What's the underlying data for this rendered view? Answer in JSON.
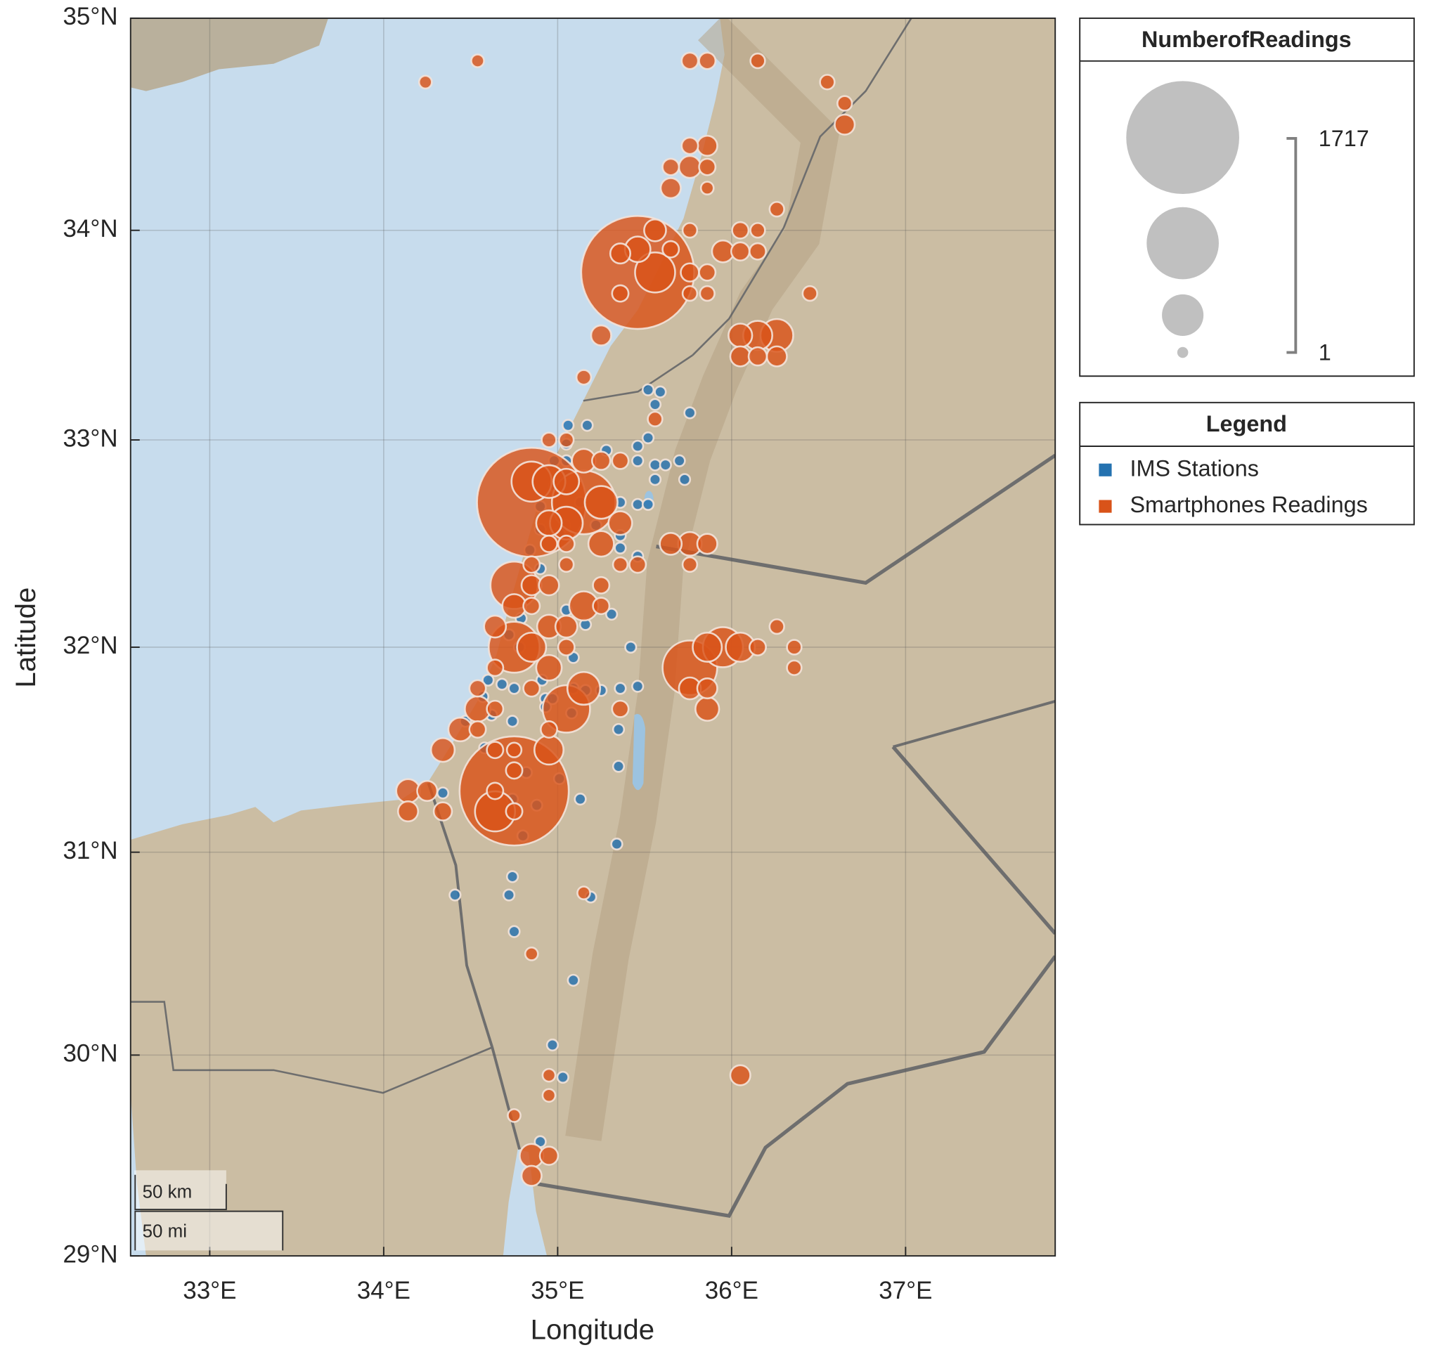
{
  "chart_data": {
    "type": "bubble",
    "xlabel": "Longitude",
    "ylabel": "Latitude",
    "xlim": [
      32.545,
      37.86
    ],
    "ylim": [
      29,
      35
    ],
    "xticks": [
      {
        "value": 33,
        "label": "33°E"
      },
      {
        "value": 34,
        "label": "34°E"
      },
      {
        "value": 35,
        "label": "35°E"
      },
      {
        "value": 36,
        "label": "36°E"
      },
      {
        "value": 37,
        "label": "37°E"
      }
    ],
    "yticks": [
      {
        "value": 29,
        "label": "29°N"
      },
      {
        "value": 30,
        "label": "30°N"
      },
      {
        "value": 31,
        "label": "31°N"
      },
      {
        "value": 32,
        "label": "32°N"
      },
      {
        "value": 33,
        "label": "33°N"
      },
      {
        "value": 34,
        "label": "34°N"
      },
      {
        "value": 35,
        "label": "35°N"
      }
    ],
    "grid": true,
    "size_legend_title": "NumberofReadings",
    "sizelim": [
      1,
      1717
    ],
    "legend_title": "Legend",
    "scale_bar": [
      "50 km",
      "50 mi"
    ],
    "series": [
      {
        "name": "IMS Stations",
        "color": "#2472b0",
        "x": [
          35.52,
          35.59,
          35.76,
          35.06,
          35.17,
          35.56,
          35.05,
          35.28,
          35.46,
          35.52,
          34.98,
          35.05,
          35.46,
          35.56,
          35.62,
          35.7,
          35.73,
          35.56,
          34.98,
          35.05,
          35.13,
          35.36,
          35.46,
          35.52,
          34.9,
          35.04,
          35.22,
          34.9,
          35.01,
          35.36,
          35.36,
          35.46,
          34.84,
          34.9,
          35.31,
          35.05,
          35.16,
          34.79,
          34.72,
          34.78,
          35.42,
          34.91,
          35.09,
          34.6,
          34.68,
          34.75,
          34.93,
          34.97,
          35.09,
          35.16,
          35.25,
          35.36,
          35.46,
          34.57,
          34.62,
          34.93,
          35.08,
          34.47,
          34.74,
          35.35,
          34.58,
          35.35,
          34.82,
          35.01,
          35.13,
          34.74,
          34.88,
          34.34,
          34.8,
          35.34,
          34.74,
          34.72,
          34.41,
          35.19,
          34.75,
          35.09,
          34.97,
          35.03,
          34.9
        ],
        "y": [
          33.24,
          33.23,
          33.13,
          33.07,
          33.07,
          33.17,
          32.98,
          32.95,
          32.97,
          33.01,
          32.9,
          32.9,
          32.9,
          32.88,
          32.88,
          32.9,
          32.81,
          32.81,
          32.78,
          32.84,
          32.7,
          32.7,
          32.69,
          32.69,
          32.68,
          32.59,
          32.59,
          32.57,
          32.55,
          32.54,
          32.48,
          32.44,
          32.47,
          32.38,
          32.16,
          32.18,
          32.11,
          32.14,
          32.06,
          32.0,
          32.0,
          31.84,
          31.95,
          31.84,
          31.82,
          31.8,
          31.75,
          31.75,
          31.8,
          31.79,
          31.79,
          31.8,
          31.81,
          31.76,
          31.67,
          31.71,
          31.68,
          31.64,
          31.64,
          31.6,
          31.51,
          31.42,
          31.39,
          31.36,
          31.26,
          31.26,
          31.23,
          31.29,
          31.08,
          31.04,
          30.88,
          30.79,
          30.79,
          30.78,
          30.61,
          30.37,
          30.05,
          29.89,
          29.57
        ],
        "sizes": [
          1,
          1,
          1,
          1,
          1,
          1,
          1,
          1,
          1,
          1,
          1,
          1,
          1,
          1,
          1,
          1,
          1,
          1,
          1,
          1,
          1,
          1,
          1,
          1,
          1,
          1,
          1,
          1,
          1,
          1,
          1,
          1,
          1,
          1,
          1,
          1,
          1,
          1,
          1,
          1,
          1,
          1,
          1,
          1,
          1,
          1,
          1,
          1,
          1,
          1,
          1,
          1,
          1,
          1,
          1,
          1,
          1,
          1,
          1,
          1,
          1,
          1,
          1,
          1,
          1,
          1,
          1,
          1,
          1,
          1,
          1,
          1,
          1,
          1,
          1,
          1,
          1,
          1,
          1
        ]
      },
      {
        "name": "Smartphones Readings",
        "color": "#d95319",
        "x": [
          34.24,
          34.54,
          35.76,
          35.86,
          36.15,
          36.55,
          36.65,
          36.65,
          35.76,
          35.86,
          35.65,
          35.76,
          35.86,
          35.65,
          35.86,
          36.26,
          35.76,
          35.46,
          35.56,
          35.46,
          35.36,
          35.65,
          35.56,
          35.76,
          35.86,
          35.36,
          35.76,
          35.86,
          35.95,
          36.05,
          36.05,
          36.15,
          36.15,
          36.45,
          35.25,
          35.15,
          36.05,
          36.15,
          36.26,
          36.05,
          36.15,
          36.26,
          35.56,
          34.95,
          35.05,
          34.85,
          34.85,
          34.95,
          35.05,
          35.15,
          35.25,
          35.15,
          35.25,
          35.36,
          34.95,
          35.05,
          35.36,
          35.25,
          35.05,
          34.95,
          34.85,
          35.05,
          35.46,
          35.36,
          35.65,
          35.76,
          35.86,
          35.76,
          34.75,
          34.85,
          34.95,
          35.25,
          35.15,
          35.25,
          34.75,
          34.85,
          34.75,
          34.64,
          34.95,
          35.05,
          34.85,
          35.05,
          34.95,
          34.64,
          35.76,
          35.86,
          35.95,
          36.05,
          36.15,
          36.26,
          36.36,
          36.36,
          35.76,
          35.86,
          35.86,
          35.05,
          35.15,
          34.85,
          34.54,
          34.64,
          34.54,
          35.36,
          34.44,
          34.54,
          34.95,
          34.34,
          34.64,
          34.75,
          34.95,
          34.75,
          34.75,
          34.64,
          34.64,
          34.75,
          34.14,
          34.25,
          34.14,
          34.34,
          35.15,
          34.85,
          34.95,
          34.95,
          34.75,
          34.85,
          34.95,
          34.85,
          36.05
        ],
        "y": [
          34.7,
          34.8,
          34.8,
          34.8,
          34.8,
          34.7,
          34.6,
          34.5,
          34.4,
          34.4,
          34.3,
          34.3,
          34.3,
          34.2,
          34.2,
          34.1,
          34.0,
          33.8,
          34.0,
          33.91,
          33.89,
          33.91,
          33.8,
          33.8,
          33.8,
          33.7,
          33.7,
          33.7,
          33.9,
          33.9,
          34.0,
          34.0,
          33.9,
          33.7,
          33.5,
          33.3,
          33.5,
          33.5,
          33.5,
          33.4,
          33.4,
          33.4,
          33.1,
          33.0,
          33.0,
          32.7,
          32.8,
          32.8,
          32.8,
          32.7,
          32.7,
          32.9,
          32.9,
          32.9,
          32.6,
          32.6,
          32.6,
          32.5,
          32.5,
          32.5,
          32.4,
          32.4,
          32.4,
          32.4,
          32.5,
          32.5,
          32.5,
          32.4,
          32.3,
          32.3,
          32.3,
          32.3,
          32.2,
          32.2,
          32.2,
          32.2,
          32.0,
          32.1,
          32.1,
          32.1,
          32.0,
          32.0,
          31.9,
          31.9,
          31.9,
          32.0,
          32.0,
          32.0,
          32.0,
          32.1,
          32.0,
          31.9,
          31.8,
          31.8,
          31.7,
          31.7,
          31.8,
          31.8,
          31.8,
          31.7,
          31.7,
          31.7,
          31.6,
          31.6,
          31.6,
          31.5,
          31.5,
          31.5,
          31.5,
          31.4,
          31.3,
          31.3,
          31.2,
          31.2,
          31.3,
          31.3,
          31.2,
          31.2,
          30.8,
          30.5,
          29.9,
          29.8,
          29.7,
          29.5,
          29.5,
          29.4,
          29.9
        ],
        "sizes": [
          31,
          31,
          93,
          93,
          62,
          62,
          62,
          154,
          93,
          154,
          93,
          185,
          93,
          154,
          31,
          62,
          62,
          1717,
          185,
          246,
          154,
          93,
          491,
          123,
          93,
          93,
          62,
          62,
          185,
          123,
          93,
          62,
          93,
          62,
          154,
          62,
          215,
          307,
          368,
          154,
          123,
          154,
          62,
          62,
          62,
          1653,
          491,
          368,
          246,
          889,
          368,
          215,
          123,
          93,
          246,
          368,
          215,
          246,
          93,
          93,
          93,
          62,
          93,
          62,
          185,
          215,
          154,
          62,
          613,
          154,
          154,
          93,
          307,
          93,
          215,
          93,
          674,
          185,
          215,
          185,
          307,
          93,
          246,
          93,
          735,
          307,
          491,
          307,
          93,
          62,
          62,
          62,
          185,
          154,
          215,
          613,
          368,
          93,
          93,
          93,
          246,
          93,
          215,
          93,
          93,
          215,
          93,
          62,
          307,
          93,
          1653,
          93,
          491,
          93,
          215,
          154,
          154,
          123,
          31,
          31,
          31,
          31,
          31,
          215,
          123,
          154,
          154
        ]
      }
    ]
  }
}
